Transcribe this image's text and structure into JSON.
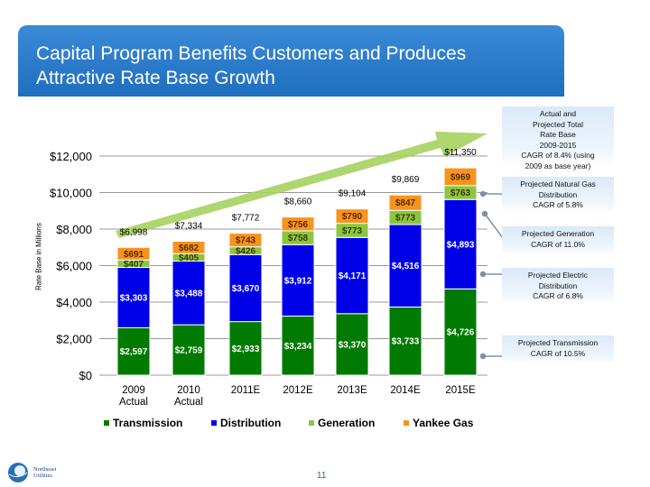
{
  "header": {
    "title": "Capital Program Benefits Customers and Produces\nAttractive Rate Base Growth"
  },
  "chart_data": {
    "type": "bar",
    "stacked": true,
    "ylabel": "Rate Base in Millions",
    "ylim": [
      0,
      12000
    ],
    "yticks": [
      "$0",
      "$2,000",
      "$4,000",
      "$6,000",
      "$8,000",
      "$10,000",
      "$12,000"
    ],
    "ytick_values": [
      0,
      2000,
      4000,
      6000,
      8000,
      10000,
      12000
    ],
    "grid": true,
    "legend_position": "bottom",
    "categories": [
      "2009\nActual",
      "2010\nActual",
      "2011E",
      "2012E",
      "2013E",
      "2014E",
      "2015E"
    ],
    "series": [
      {
        "name": "Transmission",
        "color": "#007a00",
        "values": [
          2597,
          2759,
          2933,
          3234,
          3370,
          3733,
          4726
        ],
        "labels": [
          "$2,597",
          "$2,759",
          "$2,933",
          "$3,234",
          "$3,370",
          "$3,733",
          "$4,726"
        ]
      },
      {
        "name": "Distribution",
        "color": "#0000e8",
        "values": [
          3303,
          3488,
          3670,
          3912,
          4171,
          4516,
          4893
        ],
        "labels": [
          "$3,303",
          "$3,488",
          "$3,670",
          "$3,912",
          "$4,171",
          "$4,516",
          "$4,893"
        ]
      },
      {
        "name": "Generation",
        "color": "#8cc63f",
        "values": [
          407,
          405,
          426,
          758,
          773,
          773,
          763
        ],
        "labels": [
          "$407",
          "$405",
          "$426",
          "$758",
          "$773",
          "$773",
          "$763"
        ]
      },
      {
        "name": "Yankee Gas",
        "color": "#f7941d",
        "values": [
          691,
          682,
          743,
          756,
          790,
          847,
          969
        ],
        "labels": [
          "$691",
          "$682",
          "$743",
          "$756",
          "$790",
          "$847",
          "$969"
        ]
      }
    ],
    "totals": [
      "$6,998",
      "$7,334",
      "$7,772",
      "$8,660",
      "$9,104",
      "$9,869",
      "$11,350"
    ],
    "total_values": [
      6998,
      7334,
      7772,
      8660,
      9104,
      9869,
      11350
    ],
    "annotations": [
      "Actual and\nProjected Total\nRate Base\n2009-2015\nCAGR of 8.4% (using\n2009 as base year)",
      "Projected Natural Gas\nDistribution\nCAGR of 5.8%",
      "Projected Generation\nCAGR of 11.0%",
      "Projected Electric\nDistribution\nCAGR of 6.8%",
      "Projected Transmission\nCAGR of 10.5%"
    ]
  },
  "footer": {
    "page_number": "11",
    "logo_text": "Northeast\nUtilities"
  }
}
